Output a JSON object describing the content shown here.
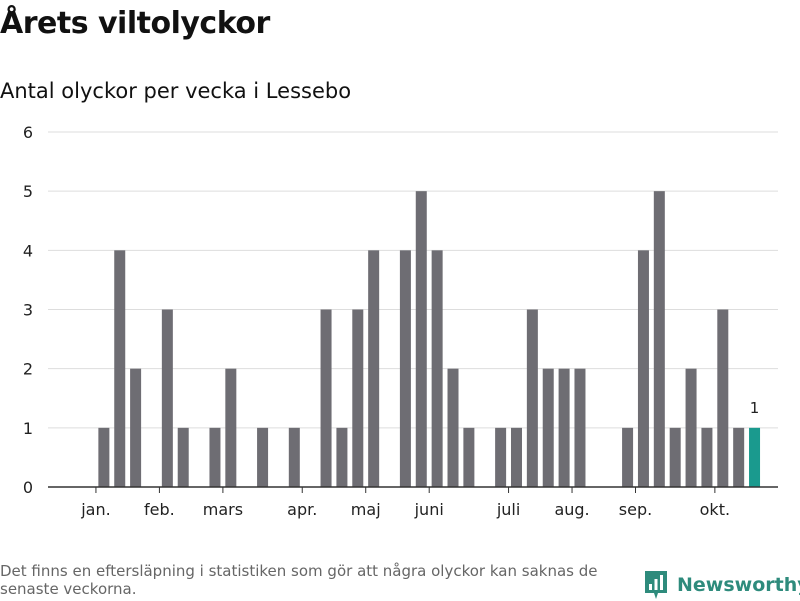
{
  "title": "Årets viltolyckor",
  "subtitle": "Antal olyckor per vecka i Lessebo",
  "footnote": "Det finns en eftersläpning i statistiken som gör att några olyckor kan saknas de senaste veckorna.",
  "brand": {
    "name": "Newsworthy"
  },
  "colors": {
    "bar": "#6e6d73",
    "highlight": "#1a9a8e",
    "grid": "#dddddd",
    "axis": "#333333",
    "brand": "#2e8b7c"
  },
  "chart_data": {
    "type": "bar",
    "title": "Antal olyckor per vecka i Lessebo",
    "xlabel": "",
    "ylabel": "",
    "ylim": [
      0,
      6
    ],
    "y_ticks": [
      0,
      1,
      2,
      3,
      4,
      5,
      6
    ],
    "grid": true,
    "weeks": [
      1,
      2,
      3,
      4,
      5,
      6,
      7,
      8,
      9,
      10,
      11,
      12,
      13,
      14,
      15,
      16,
      17,
      18,
      19,
      20,
      21,
      22,
      23,
      24,
      25,
      26,
      27,
      28,
      29,
      30,
      31,
      32,
      33,
      34,
      35,
      36,
      37,
      38,
      39,
      40,
      41,
      42,
      43,
      44,
      45
    ],
    "values": [
      0,
      1,
      4,
      2,
      0,
      3,
      1,
      0,
      1,
      2,
      0,
      1,
      0,
      1,
      0,
      3,
      1,
      3,
      4,
      0,
      4,
      5,
      4,
      2,
      1,
      0,
      1,
      1,
      3,
      2,
      2,
      2,
      0,
      0,
      1,
      4,
      5,
      1,
      2,
      1,
      3,
      1,
      1,
      null,
      null
    ],
    "highlight_week": 43,
    "highlight_label": "1",
    "month_labels": [
      {
        "label": "jan.",
        "week": 1.5
      },
      {
        "label": "feb.",
        "week": 5.5
      },
      {
        "label": "mars",
        "week": 9.5
      },
      {
        "label": "apr.",
        "week": 14.5
      },
      {
        "label": "maj",
        "week": 18.5
      },
      {
        "label": "juni",
        "week": 22.5
      },
      {
        "label": "juli",
        "week": 27.5
      },
      {
        "label": "aug.",
        "week": 31.5
      },
      {
        "label": "sep.",
        "week": 35.5
      },
      {
        "label": "okt.",
        "week": 40.5
      }
    ]
  }
}
